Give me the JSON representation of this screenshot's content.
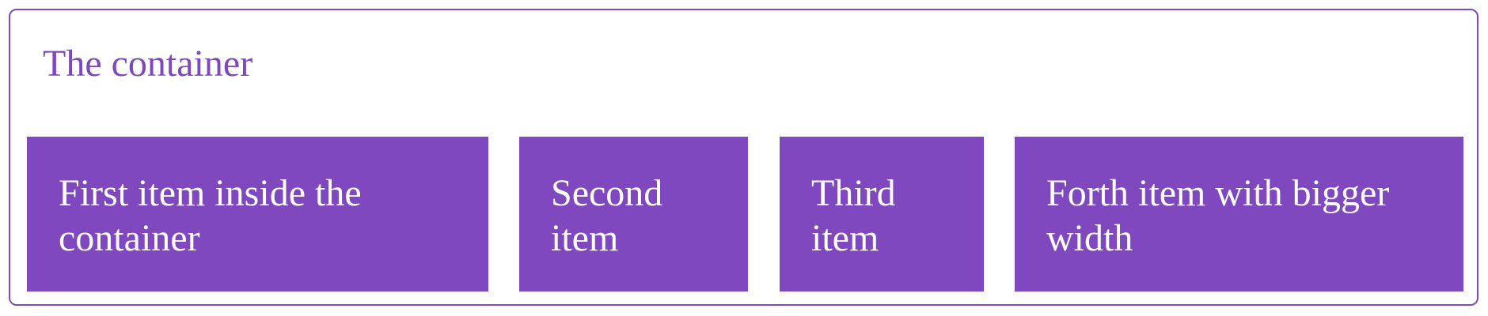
{
  "container": {
    "title": "The container",
    "accent_color": "#8048bf",
    "items": [
      {
        "label": "First item inside the container"
      },
      {
        "label": "Second item"
      },
      {
        "label": "Third item"
      },
      {
        "label": "Forth item with bigger width"
      }
    ]
  }
}
